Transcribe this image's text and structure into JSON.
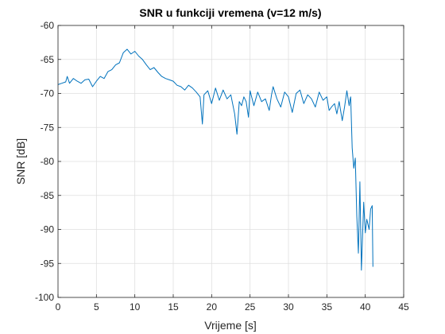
{
  "chart_data": {
    "type": "line",
    "title": "SNR u funkciji vremena (v=12 m/s)",
    "xlabel": "Vrijeme [s]",
    "ylabel": "SNR [dB]",
    "xlim": [
      0,
      45
    ],
    "ylim": [
      -100,
      -60
    ],
    "xticks": [
      0,
      5,
      10,
      15,
      20,
      25,
      30,
      35,
      40,
      45
    ],
    "yticks": [
      -100,
      -95,
      -90,
      -85,
      -80,
      -75,
      -70,
      -65,
      -60
    ],
    "xtick_labels": [
      "0",
      "5",
      "10",
      "15",
      "20",
      "25",
      "30",
      "35",
      "40",
      "45"
    ],
    "ytick_labels": [
      "-100",
      "-95",
      "-90",
      "-85",
      "-80",
      "-75",
      "-70",
      "-65",
      "-60"
    ],
    "grid": true,
    "colors": {
      "line": "#0072BD",
      "grid": "#dfdfdf",
      "axes": "#262626"
    },
    "series": [
      {
        "x": [
          0,
          0.5,
          1.0,
          1.2,
          1.5,
          2.0,
          2.5,
          3.0,
          3.5,
          4.0,
          4.5,
          5.0,
          5.5,
          6.0,
          6.5,
          7.0,
          7.5,
          8.0,
          8.5,
          9.0,
          9.5,
          10.0,
          10.5,
          11.0,
          11.5,
          12.0,
          12.5,
          13.0,
          13.5,
          14.0,
          14.5,
          15.0,
          15.5,
          16.0,
          16.5,
          17.0,
          17.5,
          18.0,
          18.5,
          18.8,
          19.0,
          19.5,
          20.0,
          20.5,
          21.0,
          21.5,
          22.0,
          22.5,
          23.0,
          23.3,
          23.6,
          23.9,
          24.2,
          24.5,
          24.8,
          25.0,
          25.5,
          26.0,
          26.5,
          27.0,
          27.5,
          27.8,
          28.0,
          28.5,
          29.0,
          29.5,
          30.0,
          30.5,
          31.0,
          31.5,
          32.0,
          32.5,
          33.0,
          33.5,
          34.0,
          34.5,
          35.0,
          35.3,
          35.6,
          36.0,
          36.3,
          36.6,
          37.0,
          37.3,
          37.6,
          37.9,
          38.0,
          38.1,
          38.3,
          38.5,
          38.7,
          38.9,
          39.1,
          39.3,
          39.5,
          39.8,
          40.0,
          40.2,
          40.5,
          40.7,
          40.9,
          41.0
        ],
        "y": [
          -68.7,
          -68.5,
          -68.3,
          -67.5,
          -68.5,
          -67.8,
          -68.2,
          -68.5,
          -68.0,
          -67.9,
          -69.0,
          -68.2,
          -67.5,
          -67.8,
          -66.8,
          -66.5,
          -65.8,
          -65.5,
          -64.0,
          -63.5,
          -64.2,
          -63.8,
          -64.5,
          -65.0,
          -65.8,
          -66.5,
          -66.2,
          -66.9,
          -67.5,
          -67.8,
          -68.0,
          -68.2,
          -68.8,
          -69.0,
          -69.5,
          -68.8,
          -69.2,
          -69.8,
          -70.5,
          -74.5,
          -70.2,
          -69.6,
          -71.5,
          -69.2,
          -71.0,
          -69.5,
          -70.8,
          -70.2,
          -73.0,
          -76.0,
          -71.2,
          -71.8,
          -70.5,
          -71.2,
          -73.5,
          -69.6,
          -71.8,
          -69.8,
          -71.2,
          -70.8,
          -72.5,
          -70.2,
          -69.0,
          -70.8,
          -72.0,
          -69.8,
          -70.5,
          -72.8,
          -70.0,
          -69.5,
          -71.5,
          -70.2,
          -70.8,
          -72.0,
          -69.8,
          -71.0,
          -70.5,
          -72.5,
          -72.0,
          -71.5,
          -73.0,
          -71.2,
          -74.0,
          -72.0,
          -69.6,
          -71.8,
          -71.0,
          -70.5,
          -78.0,
          -81.0,
          -79.5,
          -88.0,
          -93.5,
          -83.0,
          -96.0,
          -86.0,
          -90.5,
          -88.5,
          -90.0,
          -87.0,
          -86.5,
          -95.5
        ]
      }
    ]
  }
}
